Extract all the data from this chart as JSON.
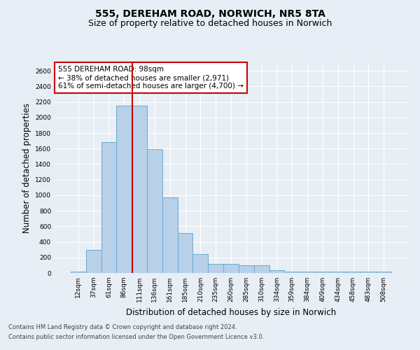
{
  "title1": "555, DEREHAM ROAD, NORWICH, NR5 8TA",
  "title2": "Size of property relative to detached houses in Norwich",
  "xlabel": "Distribution of detached houses by size in Norwich",
  "ylabel": "Number of detached properties",
  "categories": [
    "12sqm",
    "37sqm",
    "61sqm",
    "86sqm",
    "111sqm",
    "136sqm",
    "161sqm",
    "185sqm",
    "210sqm",
    "235sqm",
    "260sqm",
    "285sqm",
    "310sqm",
    "334sqm",
    "359sqm",
    "384sqm",
    "409sqm",
    "434sqm",
    "458sqm",
    "483sqm",
    "508sqm"
  ],
  "values": [
    20,
    300,
    1680,
    2150,
    2150,
    1590,
    970,
    510,
    245,
    120,
    120,
    95,
    95,
    40,
    15,
    15,
    20,
    15,
    15,
    15,
    20
  ],
  "bar_color": "#b8d0e8",
  "bar_edge_color": "#6aaad4",
  "red_line_x": 3.52,
  "annotation_line1": "555 DEREHAM ROAD: 98sqm",
  "annotation_line2": "← 38% of detached houses are smaller (2,971)",
  "annotation_line3": "61% of semi-detached houses are larger (4,700) →",
  "annotation_box_color": "#ffffff",
  "annotation_box_edge": "#cc0000",
  "background_color": "#e8eef5",
  "grid_color": "#ffffff",
  "ylim": [
    0,
    2700
  ],
  "yticks": [
    0,
    200,
    400,
    600,
    800,
    1000,
    1200,
    1400,
    1600,
    1800,
    2000,
    2200,
    2400,
    2600
  ],
  "footer1": "Contains HM Land Registry data © Crown copyright and database right 2024.",
  "footer2": "Contains public sector information licensed under the Open Government Licence v3.0.",
  "title1_fontsize": 10,
  "title2_fontsize": 9,
  "tick_fontsize": 6.5,
  "label_fontsize": 8.5,
  "annotation_fontsize": 7.5,
  "footer_fontsize": 6
}
